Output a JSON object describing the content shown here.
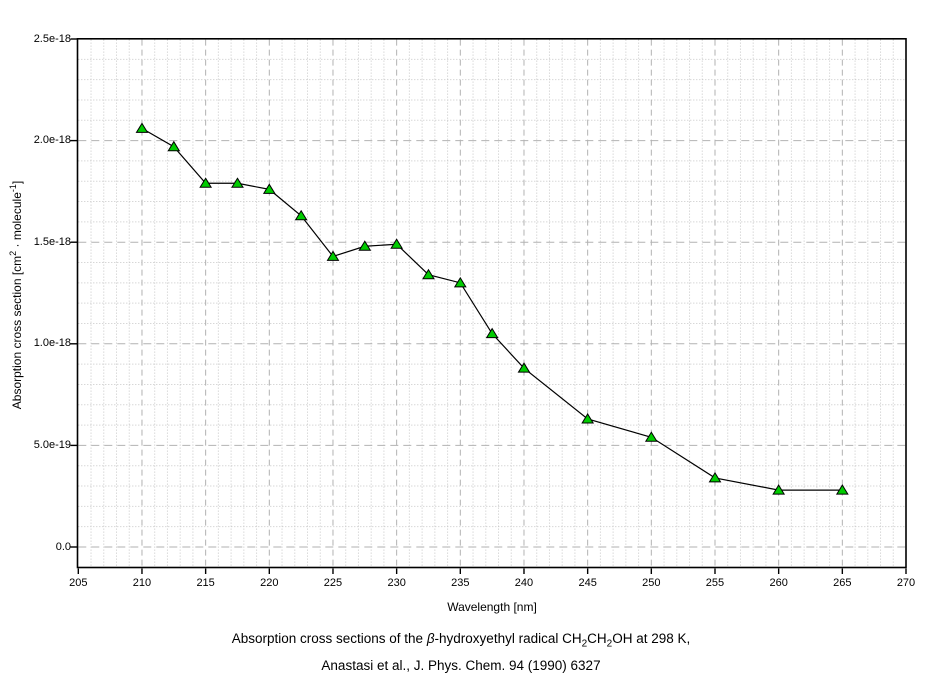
{
  "page": {
    "background": "#ffffff"
  },
  "chart_data": {
    "type": "line",
    "title": "",
    "xlabel": "Wavelength [nm]",
    "ylabel": "Absorption cross section [cm² · molecule⁻¹]",
    "ylabel_segments": [
      {
        "t": "Absorption cross section [cm"
      },
      {
        "t": "2",
        "style": "sup"
      },
      {
        "t": " · molecule"
      },
      {
        "t": "-1",
        "style": "sup"
      },
      {
        "t": "]"
      }
    ],
    "xlim": [
      205,
      270
    ],
    "ylim": [
      0,
      2.5e-18
    ],
    "x_major_ticks": [
      205,
      210,
      215,
      220,
      225,
      230,
      235,
      240,
      245,
      250,
      255,
      260,
      265,
      270
    ],
    "x_minor_step": 1,
    "y_major_ticks": [
      {
        "value": 0,
        "label": "0.0"
      },
      {
        "value": 5e-19,
        "label": "5.0e-19"
      },
      {
        "value": 1e-18,
        "label": "1.0e-18"
      },
      {
        "value": 1.5e-18,
        "label": "1.5e-18"
      },
      {
        "value": 2e-18,
        "label": "2.0e-18"
      },
      {
        "value": 2.5e-18,
        "label": "2.5e-18"
      }
    ],
    "y_minor_step": 1e-19,
    "grid": {
      "minor_style": "dotted",
      "major_style": "dashed"
    },
    "legend_position": "none",
    "series": [
      {
        "marker": "triangle-up",
        "marker_fill": "#00cc00",
        "marker_edge": "#000000",
        "line_color": "#000000",
        "points": [
          [
            210.0,
            2.06e-18
          ],
          [
            212.5,
            1.97e-18
          ],
          [
            215.0,
            1.79e-18
          ],
          [
            217.5,
            1.79e-18
          ],
          [
            220.0,
            1.76e-18
          ],
          [
            222.5,
            1.63e-18
          ],
          [
            225.0,
            1.43e-18
          ],
          [
            227.5,
            1.48e-18
          ],
          [
            230.0,
            1.49e-18
          ],
          [
            232.5,
            1.34e-18
          ],
          [
            235.0,
            1.3e-18
          ],
          [
            237.5,
            1.05e-18
          ],
          [
            240.0,
            8.8e-19
          ],
          [
            245.0,
            6.3e-19
          ],
          [
            250.0,
            5.4e-19
          ],
          [
            255.0,
            3.4e-19
          ],
          [
            260.0,
            2.8e-19
          ],
          [
            265.0,
            2.8e-19
          ]
        ]
      }
    ]
  },
  "caption": {
    "line1_text": "Absorption cross sections of the β-hydroxyethyl radical CH2CH2OH at 298 K,",
    "line1_segments": [
      {
        "t": "Absorption cross sections of the "
      },
      {
        "t": "β",
        "style": "italic"
      },
      {
        "t": "-hydroxyethyl radical CH"
      },
      {
        "t": "2",
        "style": "sub"
      },
      {
        "t": "CH"
      },
      {
        "t": "2",
        "style": "sub"
      },
      {
        "t": "OH at 298 K,"
      }
    ],
    "line2": "Anastasi et al., J. Phys. Chem. 94 (1990) 6327"
  },
  "colors": {
    "grid_minor": "#c6c6c6",
    "grid_major": "#b2b2b2",
    "axis": "#000000",
    "text": "#000000",
    "marker_fill": "#00cc00"
  }
}
